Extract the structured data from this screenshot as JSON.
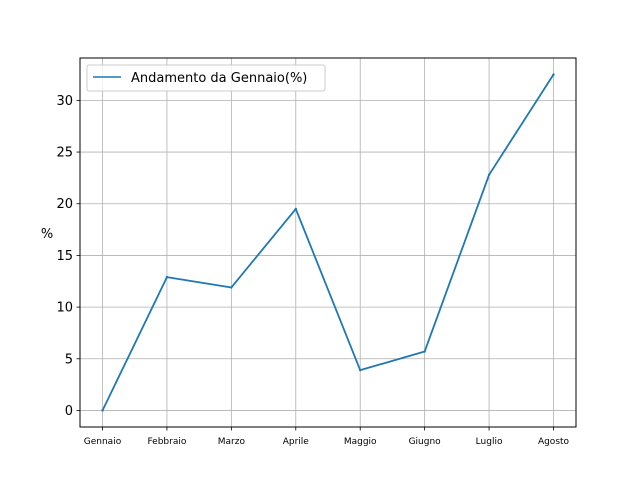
{
  "chart_data": {
    "type": "line",
    "title": "",
    "xlabel": "",
    "ylabel": "%",
    "categories": [
      "Gennaio",
      "Febbraio",
      "Marzo",
      "Aprile",
      "Maggio",
      "Giugno",
      "Luglio",
      "Agosto"
    ],
    "series": [
      {
        "name": "Andamento da Gennaio(%)",
        "values": [
          0.0,
          12.9,
          11.9,
          19.5,
          3.9,
          5.7,
          22.8,
          32.5
        ],
        "color": "#1f77b4"
      }
    ],
    "ylim": [
      -1.6,
      34.1
    ],
    "yticks": [
      0,
      5,
      10,
      15,
      20,
      25,
      30
    ],
    "grid": true,
    "legend_location": "upper left"
  }
}
